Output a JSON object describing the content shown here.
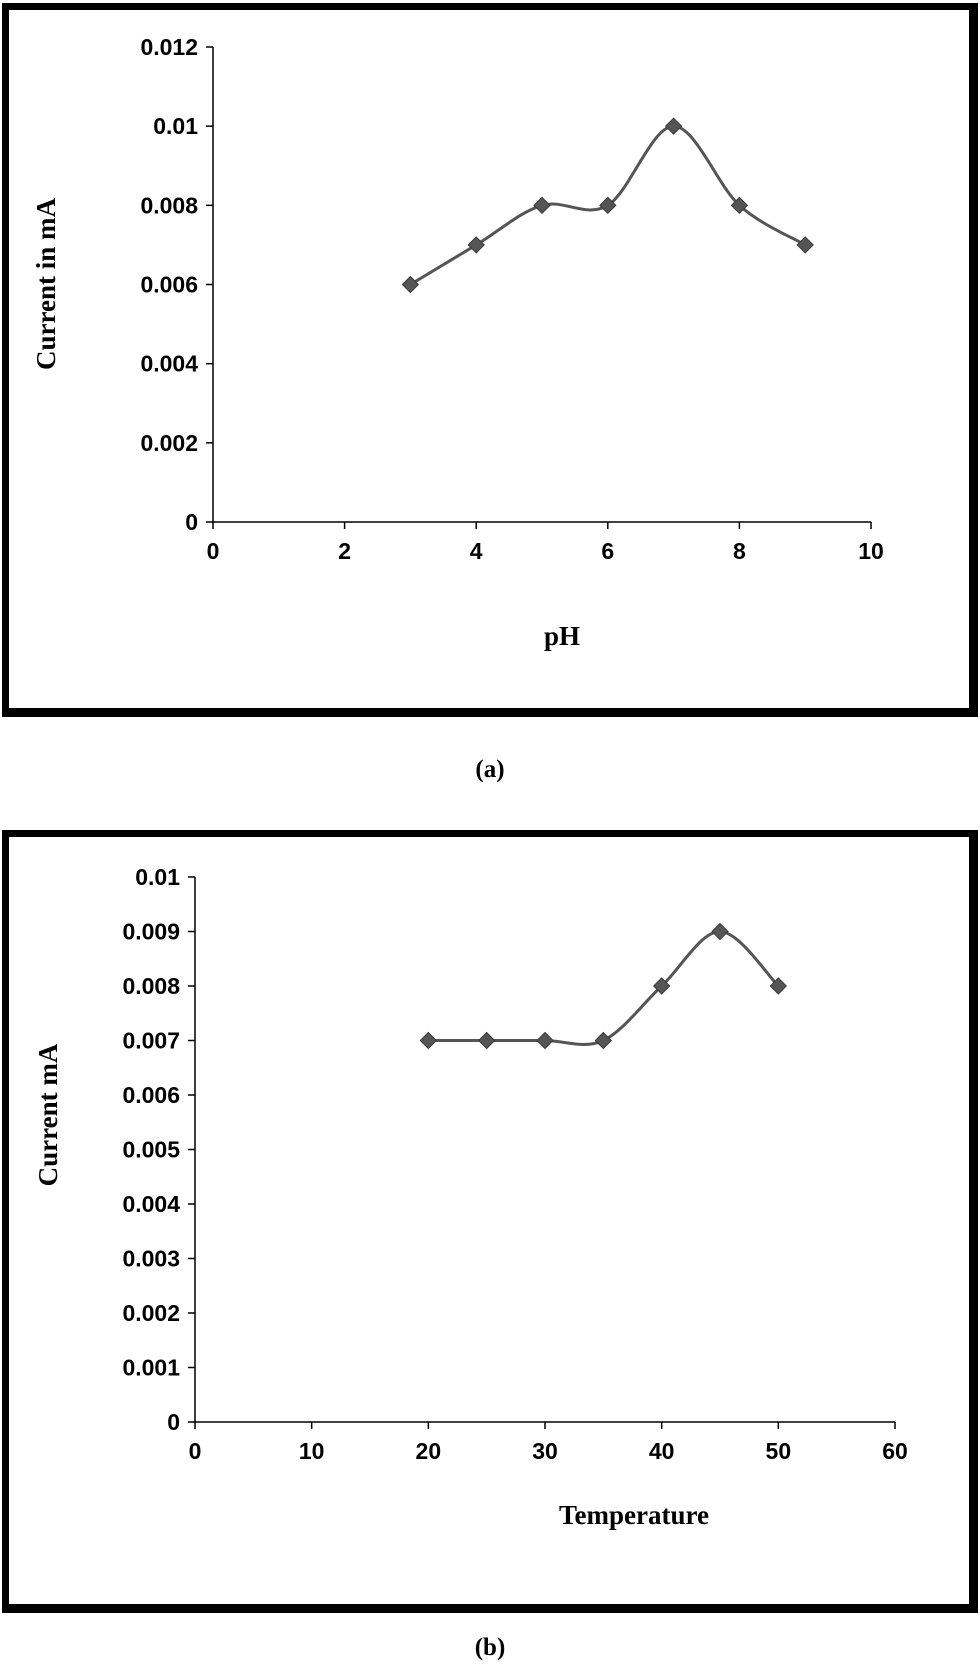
{
  "chart_data": [
    {
      "type": "line",
      "title": "",
      "xlabel": "pH",
      "ylabel": "Current in mA",
      "xlim": [
        0,
        10
      ],
      "ylim": [
        0,
        0.012
      ],
      "x_ticks": [
        "0",
        "2",
        "4",
        "6",
        "8",
        "10"
      ],
      "y_ticks": [
        "0",
        "0.002",
        "0.004",
        "0.006",
        "0.008",
        "0.01",
        "0.012"
      ],
      "grid": false,
      "legend": "none",
      "smooth": true,
      "marker": "diamond",
      "color": "#555555",
      "series": [
        {
          "x": [
            3,
            4,
            5,
            6,
            7,
            8,
            9
          ],
          "y": [
            0.006,
            0.007,
            0.008,
            0.008,
            0.01,
            0.008,
            0.007
          ]
        }
      ]
    },
    {
      "type": "line",
      "title": "",
      "xlabel": "Temperature",
      "ylabel": "Current mA",
      "xlim": [
        0,
        60
      ],
      "ylim": [
        0,
        0.01
      ],
      "x_ticks": [
        "0",
        "10",
        "20",
        "30",
        "40",
        "50",
        "60"
      ],
      "y_ticks": [
        "0",
        "0.001",
        "0.002",
        "0.003",
        "0.004",
        "0.005",
        "0.006",
        "0.007",
        "0.008",
        "0.009",
        "0.01"
      ],
      "grid": false,
      "legend": "none",
      "smooth": true,
      "marker": "diamond",
      "color": "#555555",
      "series": [
        {
          "x": [
            20,
            25,
            30,
            35,
            40,
            45,
            50
          ],
          "y": [
            0.007,
            0.007,
            0.007,
            0.007,
            0.008,
            0.009,
            0.008
          ]
        }
      ]
    }
  ],
  "captions": [
    "(a)",
    "(b)"
  ]
}
